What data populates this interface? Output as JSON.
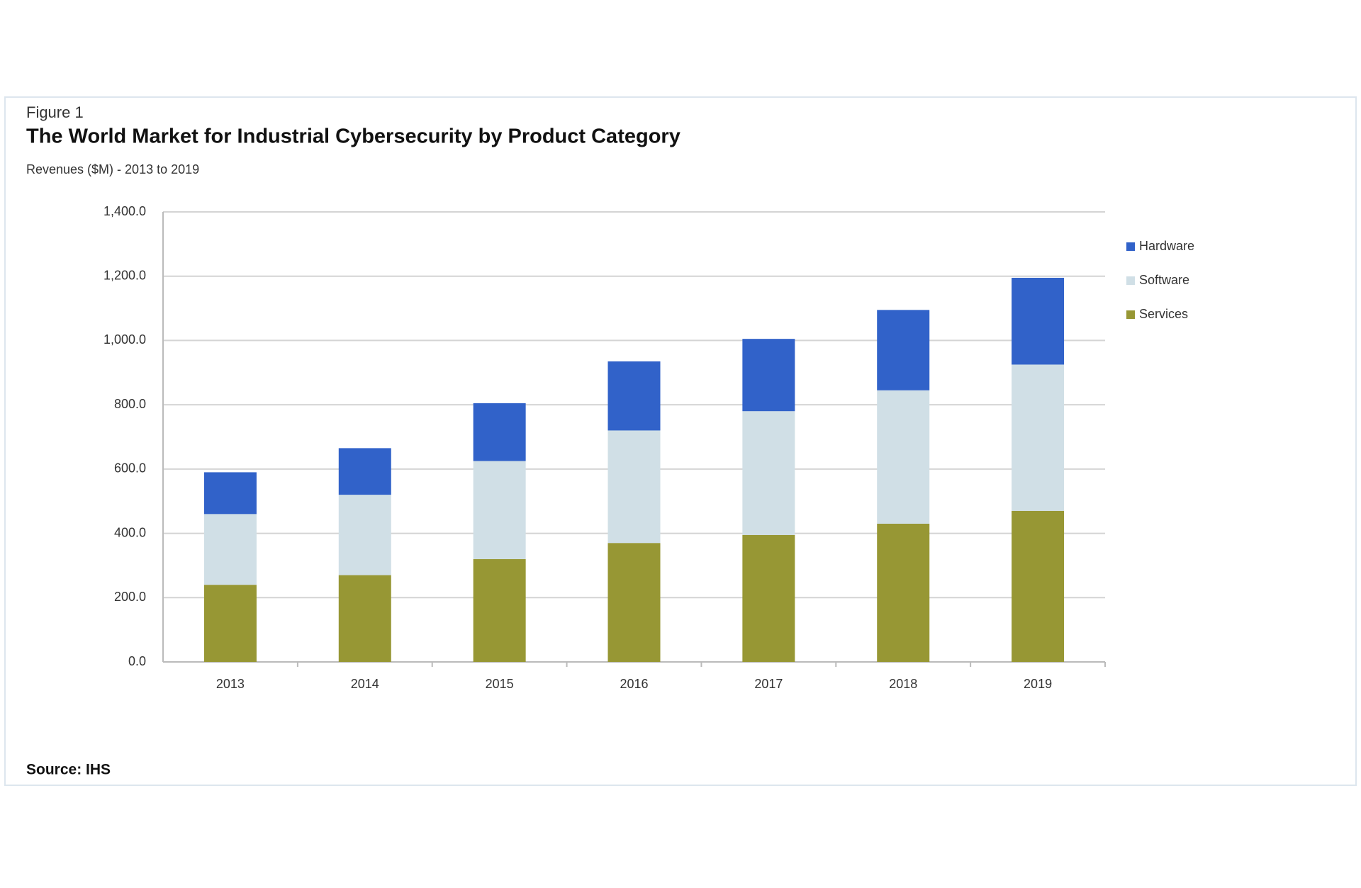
{
  "chart_data": {
    "type": "stacked_bar",
    "figure_label": "Figure 1",
    "title": "The World Market for Industrial Cybersecurity by Product Category",
    "subtitle": "Revenues ($M) - 2013 to 2019",
    "source": "Source: IHS",
    "categories": [
      "2013",
      "2014",
      "2015",
      "2016",
      "2017",
      "2018",
      "2019"
    ],
    "series": [
      {
        "name": "Services",
        "color": "#979734",
        "values": [
          240,
          270,
          320,
          370,
          395,
          430,
          470
        ]
      },
      {
        "name": "Software",
        "color": "#d0dfe6",
        "values": [
          220,
          250,
          305,
          350,
          385,
          415,
          455
        ]
      },
      {
        "name": "Hardware",
        "color": "#3162c9",
        "values": [
          130,
          145,
          180,
          215,
          225,
          250,
          270
        ]
      }
    ],
    "ylim": [
      0,
      1400
    ],
    "yticks": [
      {
        "value": 0,
        "label": "0.0"
      },
      {
        "value": 200,
        "label": "200.0"
      },
      {
        "value": 400,
        "label": "400.0"
      },
      {
        "value": 600,
        "label": "600.0"
      },
      {
        "value": 800,
        "label": "800.0"
      },
      {
        "value": 1000,
        "label": "1,000.0"
      },
      {
        "value": 1200,
        "label": "1,200.0"
      },
      {
        "value": 1400,
        "label": "1,400.0"
      }
    ],
    "grid": true,
    "legend": "right"
  }
}
